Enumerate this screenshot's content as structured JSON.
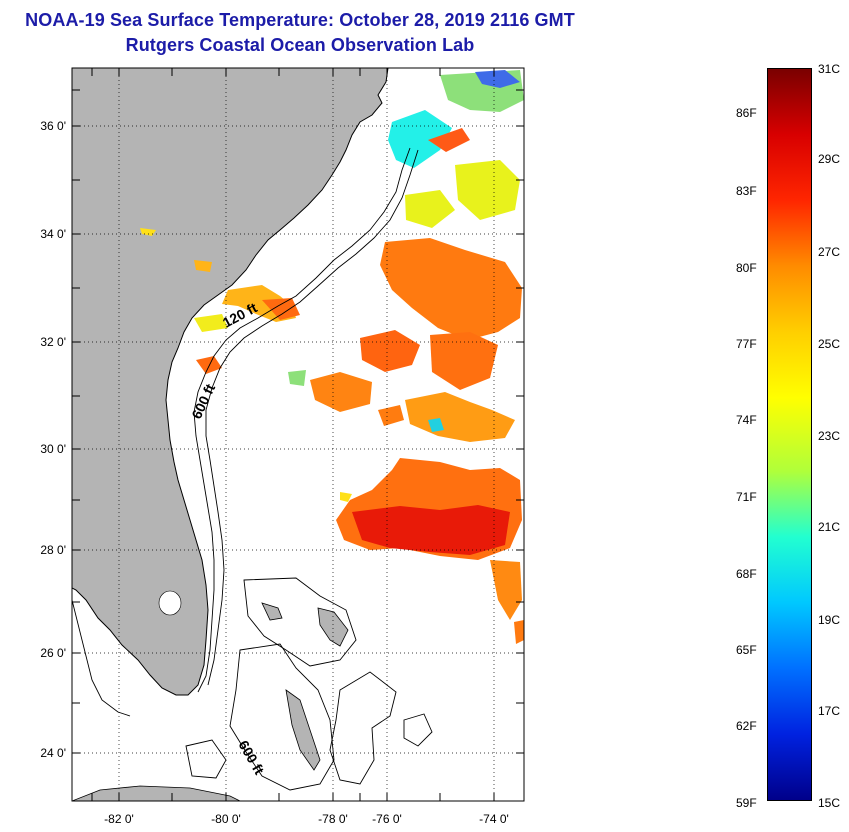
{
  "title": {
    "line1": "NOAA-19 Sea Surface Temperature:  October 28, 2019 2116 GMT",
    "line2": "Rutgers Coastal Ocean Observation Lab"
  },
  "map": {
    "lat_labels": [
      "36 0'",
      "34 0'",
      "32 0'",
      "30 0'",
      "28 0'",
      "26 0'",
      "24 0'"
    ],
    "lon_labels": [
      "-82 0'",
      "-80 0'",
      "-78 0'",
      "-76 0'",
      "-74 0'"
    ],
    "contour_labels": [
      "120 ft",
      "600 ft",
      "600 ft"
    ],
    "colors": {
      "land": "#b4b4b4",
      "frame": "#000000",
      "title": "#1c1ca8"
    }
  },
  "colorbar": {
    "fahrenheit_labels": [
      "86F",
      "83F",
      "80F",
      "77F",
      "74F",
      "71F",
      "68F",
      "65F",
      "62F",
      "59F"
    ],
    "celsius_labels": [
      "31C",
      "29C",
      "27C",
      "25C",
      "23C",
      "21C",
      "19C",
      "17C",
      "15C"
    ],
    "range_c": [
      15,
      31
    ],
    "colors_top_to_bottom": [
      "#7a0000",
      "#d80000",
      "#ff2600",
      "#ff8c00",
      "#ffcf00",
      "#ffff00",
      "#b0ff3a",
      "#22ffd0",
      "#00c8ff",
      "#0070ff",
      "#0022e0",
      "#00008a"
    ]
  }
}
